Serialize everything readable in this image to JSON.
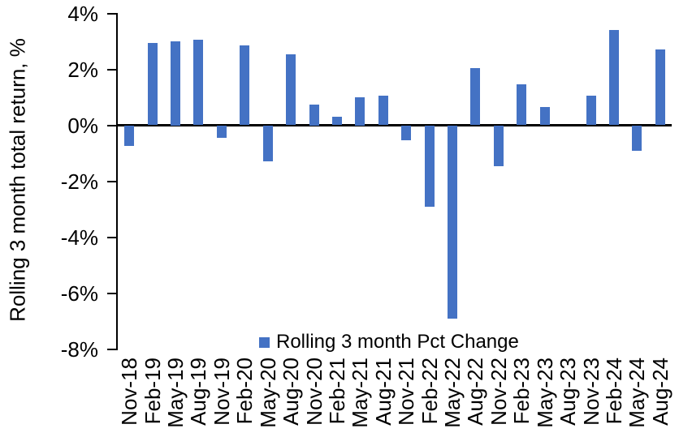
{
  "chart_data": {
    "type": "bar",
    "title": "",
    "xlabel": "",
    "ylabel": "Rolling 3 month total return, %",
    "categories": [
      "Nov-18",
      "Feb-19",
      "May-19",
      "Aug-19",
      "Nov-19",
      "Feb-20",
      "May-20",
      "Aug-20",
      "Nov-20",
      "Feb-21",
      "May-21",
      "Aug-21",
      "Nov-21",
      "Feb-22",
      "May-22",
      "Aug-22",
      "Nov-22",
      "Feb-23",
      "May-23",
      "Aug-23",
      "Nov-23",
      "Feb-24",
      "May-24",
      "Aug-24"
    ],
    "values": [
      -0.75,
      2.95,
      3.0,
      3.05,
      -0.45,
      2.85,
      -1.3,
      2.55,
      0.75,
      0.3,
      1.0,
      1.05,
      -0.55,
      -2.9,
      -6.9,
      2.05,
      -1.45,
      1.45,
      0.65,
      0.0,
      1.05,
      3.4,
      -0.9,
      2.7
    ],
    "ylim": [
      -8,
      4
    ],
    "ytick_values": [
      4,
      2,
      0,
      -2,
      -4,
      -6,
      -8
    ],
    "ytick_labels": [
      "4%",
      "2%",
      "0%",
      "-2%",
      "-4%",
      "-6%",
      "-8%"
    ],
    "grid": false,
    "bar_color": "#4472C4",
    "axis_color": "#000000",
    "background_color": "#FFFFFF",
    "legend": {
      "position": "bottom-center",
      "entries": [
        {
          "label": "Rolling 3 month Pct Change",
          "marker_color": "#4472C4"
        }
      ]
    }
  }
}
